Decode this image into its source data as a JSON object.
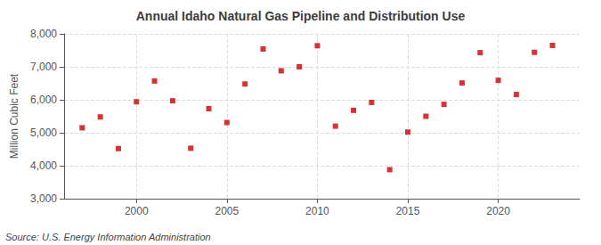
{
  "chart_data": {
    "type": "scatter",
    "title": "Annual Idaho Natural Gas Pipeline and Distribution Use",
    "ylabel": "Million Cubic Feet",
    "annotation": "Source: U.S. Energy Information Administration",
    "x": [
      1997,
      1998,
      1999,
      2000,
      2001,
      2002,
      2003,
      2004,
      2005,
      2006,
      2007,
      2008,
      2009,
      2010,
      2011,
      2012,
      2013,
      2014,
      2015,
      2016,
      2017,
      2018,
      2019,
      2020,
      2021,
      2022,
      2023
    ],
    "values": [
      5150,
      5480,
      4520,
      5940,
      6570,
      5970,
      4530,
      5730,
      5310,
      6480,
      7540,
      6880,
      7000,
      7640,
      5200,
      5680,
      5920,
      3880,
      5020,
      5500,
      5860,
      6510,
      7430,
      6590,
      6160,
      7440,
      7650
    ],
    "color": "#cc0000",
    "marker": "square",
    "xlim": [
      1996,
      2024.5
    ],
    "ylim": [
      3000,
      8000
    ],
    "xticks": [
      2000,
      2005,
      2010,
      2015,
      2020
    ],
    "yticks": [
      {
        "value": 3000,
        "label": "3,000"
      },
      {
        "value": 4000,
        "label": "4,000"
      },
      {
        "value": 5000,
        "label": "5,000"
      },
      {
        "value": 6000,
        "label": "6,000"
      },
      {
        "value": 7000,
        "label": "7,000"
      },
      {
        "value": 8000,
        "label": "8,000"
      }
    ],
    "grid": true
  }
}
